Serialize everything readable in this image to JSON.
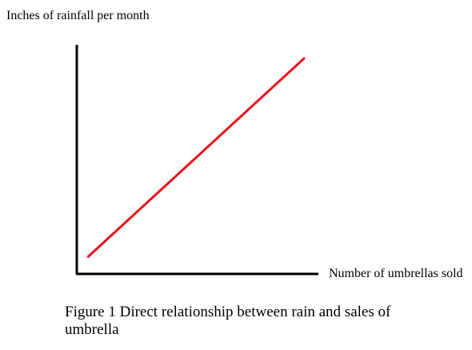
{
  "chart_data": {
    "type": "line",
    "title": "",
    "ylabel": "Inches of rainfall per month",
    "xlabel": "Number of umbrellas sold",
    "xlim": [
      0,
      1
    ],
    "ylim": [
      0,
      1
    ],
    "grid": false,
    "series": [
      {
        "values": [
          [
            0.05,
            0.08
          ],
          [
            1.0,
            1.0
          ]
        ]
      }
    ],
    "colors": {
      "line": "#e8141e",
      "axis": "#000000"
    }
  },
  "caption": "Figure 1 Direct relationship between rain and sales of umbrella"
}
